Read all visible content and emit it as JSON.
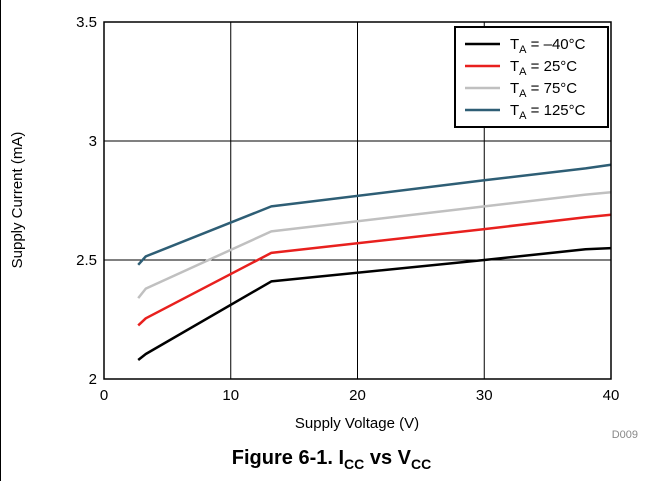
{
  "caption": {
    "prefix": "Figure 6-1. I",
    "sub1": "CC",
    "middle": " vs V",
    "sub2": "CC"
  },
  "code_label": "D009",
  "chart_data": {
    "type": "line",
    "xlabel": "Supply Voltage (V)",
    "ylabel": "Supply Current (mA)",
    "xlim": [
      0,
      40
    ],
    "ylim": [
      2,
      3.5
    ],
    "x_ticks": [
      "0",
      "10",
      "20",
      "30",
      "40"
    ],
    "y_ticks": [
      "2",
      "2.5",
      "3",
      "3.5"
    ],
    "grid": true,
    "legend_position": "top-right",
    "series": [
      {
        "name_main": "T",
        "name_sub": "A",
        "name_rest": " = –40°C",
        "color": "#000000",
        "x": [
          2.7,
          3.3,
          13.2,
          30,
          38,
          40
        ],
        "y": [
          2.08,
          2.105,
          2.41,
          2.5,
          2.545,
          2.55
        ]
      },
      {
        "name_main": "T",
        "name_sub": "A",
        "name_rest": " = 25°C",
        "color": "#e8201e",
        "x": [
          2.7,
          3.3,
          13.2,
          30,
          38,
          40
        ],
        "y": [
          2.225,
          2.255,
          2.53,
          2.63,
          2.68,
          2.69
        ]
      },
      {
        "name_main": "T",
        "name_sub": "A",
        "name_rest": " = 75°C",
        "color": "#c0c0c0",
        "x": [
          2.7,
          3.3,
          13.2,
          30,
          38,
          40
        ],
        "y": [
          2.34,
          2.38,
          2.62,
          2.725,
          2.775,
          2.785
        ]
      },
      {
        "name_main": "T",
        "name_sub": "A",
        "name_rest": " = 125°C",
        "color": "#2e5e75",
        "x": [
          2.7,
          3.3,
          13.2,
          30,
          38,
          40
        ],
        "y": [
          2.48,
          2.515,
          2.725,
          2.835,
          2.885,
          2.9
        ]
      }
    ]
  }
}
